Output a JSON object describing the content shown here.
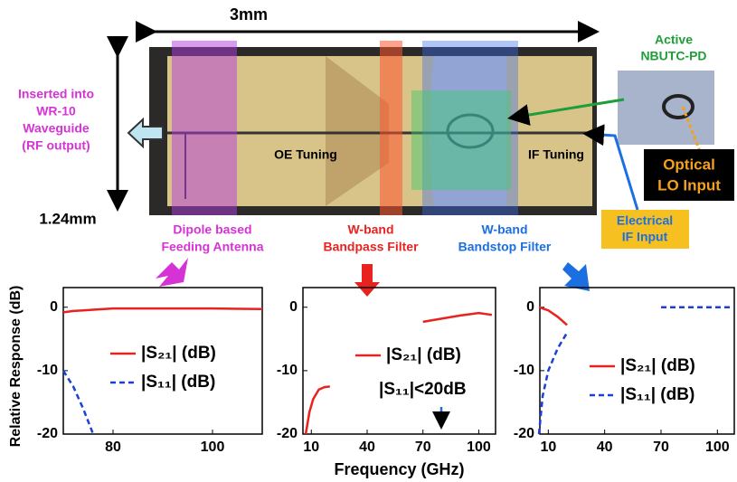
{
  "diagram": {
    "width_label": "3mm",
    "height_label": "1.24mm",
    "waveguide": [
      "Inserted into",
      "WR-10",
      "Waveguide",
      "(RF output)"
    ],
    "oe_tuning": "OE Tuning",
    "if_tuning": "IF Tuning",
    "pd": [
      "Active",
      "NBUTC-PD"
    ],
    "optical": [
      "Optical",
      "LO Input"
    ],
    "electrical": [
      "Electrical",
      "IF Input"
    ],
    "antenna": [
      "Dipole based",
      "Feeding Antenna"
    ],
    "bandpass": [
      "W-band",
      "Bandpass Filter"
    ],
    "bandstop": [
      "W-band",
      "Bandstop Filter"
    ]
  },
  "chart_data": [
    {
      "type": "line",
      "ylabel": "Relative Response (dB)",
      "x": [
        70,
        72,
        74,
        76,
        80,
        90,
        100,
        110
      ],
      "series": [
        {
          "name": "|S₂₁| (dB)",
          "color": "#e8231f",
          "dash": false,
          "values": [
            -0.8,
            -0.6,
            -0.5,
            -0.4,
            -0.2,
            -0.2,
            -0.2,
            -0.3
          ]
        },
        {
          "name": "|S₁₁| (dB)",
          "color": "#1c3fd6",
          "dash": true,
          "values": [
            -10,
            -12.5,
            -16,
            -20,
            null,
            null,
            null,
            null
          ]
        }
      ],
      "xlim": [
        70,
        110
      ],
      "xticks": [
        80,
        100
      ],
      "ylim": [
        -20,
        3.1
      ],
      "yticks": [
        -20,
        -10,
        0
      ]
    },
    {
      "type": "line",
      "xlabel": "Frequency (GHz)",
      "annotation": "|S₁₁|<20dB",
      "x": [
        7,
        9,
        11,
        14,
        17,
        20,
        45,
        70,
        80,
        90,
        100,
        107
      ],
      "series": [
        {
          "name": "|S₂₁| (dB)",
          "color": "#e8231f",
          "dash": false,
          "values": [
            -20,
            -16.5,
            -14.5,
            -13,
            -12.6,
            -12.5,
            null,
            -2.3,
            -1.8,
            -1.3,
            -0.9,
            -1.2
          ]
        }
      ],
      "xlim": [
        5.5,
        109
      ],
      "xticks": [
        10,
        40,
        70,
        100
      ],
      "ylim": [
        -20,
        3.1
      ],
      "yticks": [
        -20,
        -10,
        0
      ]
    },
    {
      "type": "line",
      "x": [
        5,
        7,
        10,
        15,
        20,
        45,
        70,
        90,
        109
      ],
      "series": [
        {
          "name": "|S₂₁| (dB)",
          "color": "#e8231f",
          "dash": false,
          "values": [
            0,
            -0.2,
            -0.5,
            -1.5,
            -2.8,
            null,
            null,
            null,
            null
          ]
        },
        {
          "name": "|S₁₁| (dB)",
          "color": "#1c3fd6",
          "dash": true,
          "values": [
            -20,
            -14,
            -10,
            -6.5,
            -4,
            null,
            0,
            0,
            0
          ]
        }
      ],
      "xlim": [
        5.5,
        109
      ],
      "xticks": [
        10,
        40,
        70,
        100
      ],
      "ylim": [
        -20,
        3.1
      ],
      "yticks": [
        -20,
        -10,
        0
      ]
    }
  ]
}
